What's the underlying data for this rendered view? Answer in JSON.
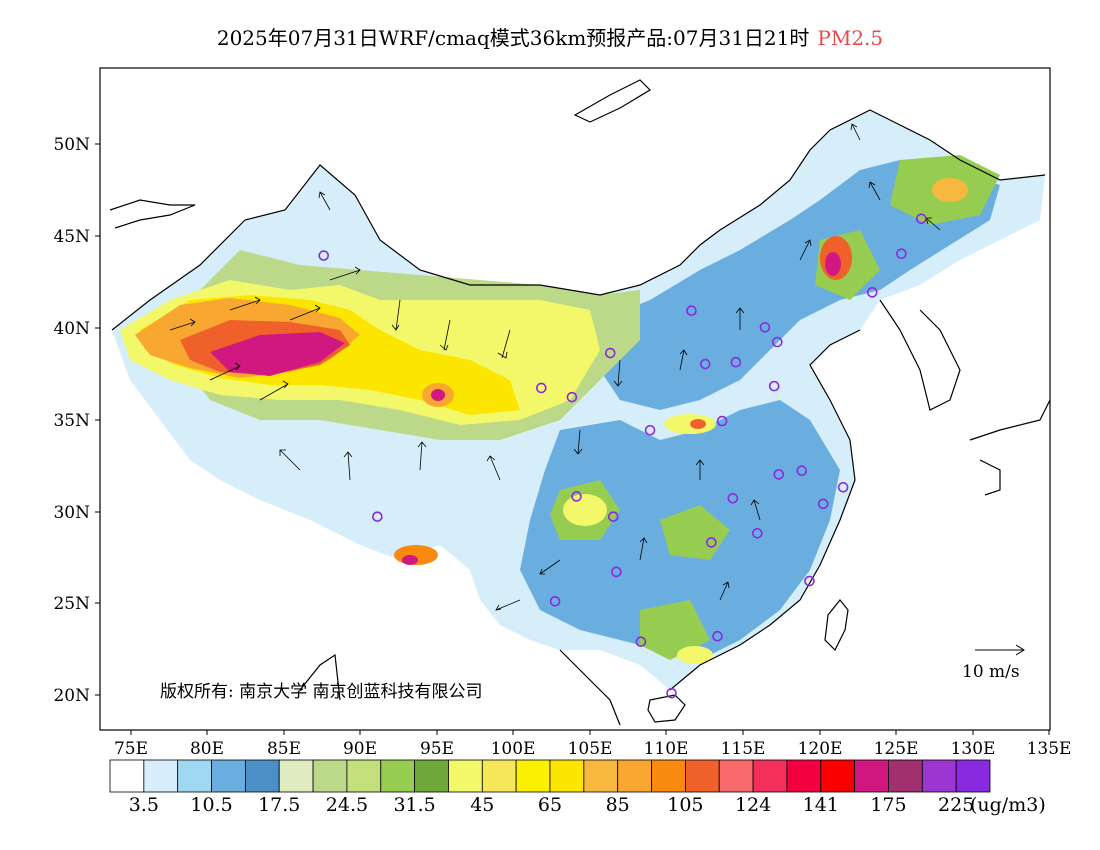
{
  "title": {
    "text": "2025年07月31日WRF/cmaq模式36km预报产品:07月31日21时",
    "variable": "PM2.5",
    "variable_color": "#e64a4a"
  },
  "map": {
    "lon_ticks": [
      "75E",
      "80E",
      "85E",
      "90E",
      "95E",
      "100E",
      "105E",
      "110E",
      "115E",
      "120E",
      "125E",
      "130E",
      "135E"
    ],
    "lat_ticks": [
      "20N",
      "25N",
      "30N",
      "35N",
      "40N",
      "45N",
      "50N"
    ],
    "copyright": "版权所有: 南京大学  南京创蓝科技有限公司",
    "vector_scale_label": "10 m/s"
  },
  "colorbar": {
    "colors": [
      "#ffffff",
      "#d6eefa",
      "#a0d8f2",
      "#6aaedf",
      "#4a8fc6",
      "#e0ecc0",
      "#bcd98a",
      "#c4e07c",
      "#96cc50",
      "#6ea83a",
      "#f2f86a",
      "#f5e65a",
      "#faf000",
      "#fce600",
      "#f8b840",
      "#f8a830",
      "#f88a10",
      "#f0602a",
      "#f86a6e",
      "#f2305a",
      "#f20040",
      "#fa0000",
      "#d01880",
      "#a03070",
      "#9c36d0",
      "#8a2ae0"
    ],
    "labels": [
      "3.5",
      "10.5",
      "17.5",
      "24.5",
      "31.5",
      "45",
      "65",
      "85",
      "105",
      "124",
      "141",
      "175",
      "225"
    ],
    "unit": "(ug/m3)"
  },
  "chart_data": {
    "type": "heatmap",
    "title": "2025年07月31日WRF/cmaq模式36km预报产品:07月31日21时 PM2.5",
    "xlim": [
      73,
      135
    ],
    "ylim": [
      18,
      54
    ],
    "hotspots": [
      {
        "lon": 83,
        "lat": 38.5,
        "level": 175
      },
      {
        "lon": 77,
        "lat": 39.5,
        "level": 105
      },
      {
        "lon": 95,
        "lat": 35.8,
        "level": 141
      },
      {
        "lon": 92.8,
        "lat": 27.5,
        "level": 141
      },
      {
        "lon": 120.5,
        "lat": 43.5,
        "level": 175
      },
      {
        "lon": 127.5,
        "lat": 47.5,
        "level": 105
      },
      {
        "lon": 112,
        "lat": 35,
        "level": 124
      }
    ],
    "city_markers": [
      {
        "lon": 87.6,
        "lat": 43.8
      },
      {
        "lon": 91.1,
        "lat": 29.6
      },
      {
        "lon": 101.8,
        "lat": 36.6
      },
      {
        "lon": 103.8,
        "lat": 36.1
      },
      {
        "lon": 106.3,
        "lat": 38.5
      },
      {
        "lon": 111.6,
        "lat": 40.8
      },
      {
        "lon": 116.4,
        "lat": 39.9
      },
      {
        "lon": 117.2,
        "lat": 39.1
      },
      {
        "lon": 114.5,
        "lat": 38.0
      },
      {
        "lon": 112.5,
        "lat": 37.9
      },
      {
        "lon": 117.0,
        "lat": 36.7
      },
      {
        "lon": 113.6,
        "lat": 34.8
      },
      {
        "lon": 108.9,
        "lat": 34.3
      },
      {
        "lon": 104.1,
        "lat": 30.7
      },
      {
        "lon": 106.5,
        "lat": 29.6
      },
      {
        "lon": 106.7,
        "lat": 26.6
      },
      {
        "lon": 102.7,
        "lat": 25.0
      },
      {
        "lon": 108.3,
        "lat": 22.8
      },
      {
        "lon": 113.3,
        "lat": 23.1
      },
      {
        "lon": 110.3,
        "lat": 20.0
      },
      {
        "lon": 112.9,
        "lat": 28.2
      },
      {
        "lon": 115.9,
        "lat": 28.7
      },
      {
        "lon": 114.3,
        "lat": 30.6
      },
      {
        "lon": 117.3,
        "lat": 31.9
      },
      {
        "lon": 118.8,
        "lat": 32.1
      },
      {
        "lon": 121.5,
        "lat": 31.2
      },
      {
        "lon": 120.2,
        "lat": 30.3
      },
      {
        "lon": 119.3,
        "lat": 26.1
      },
      {
        "lon": 123.4,
        "lat": 41.8
      },
      {
        "lon": 125.3,
        "lat": 43.9
      },
      {
        "lon": 126.6,
        "lat": 45.8
      }
    ]
  }
}
